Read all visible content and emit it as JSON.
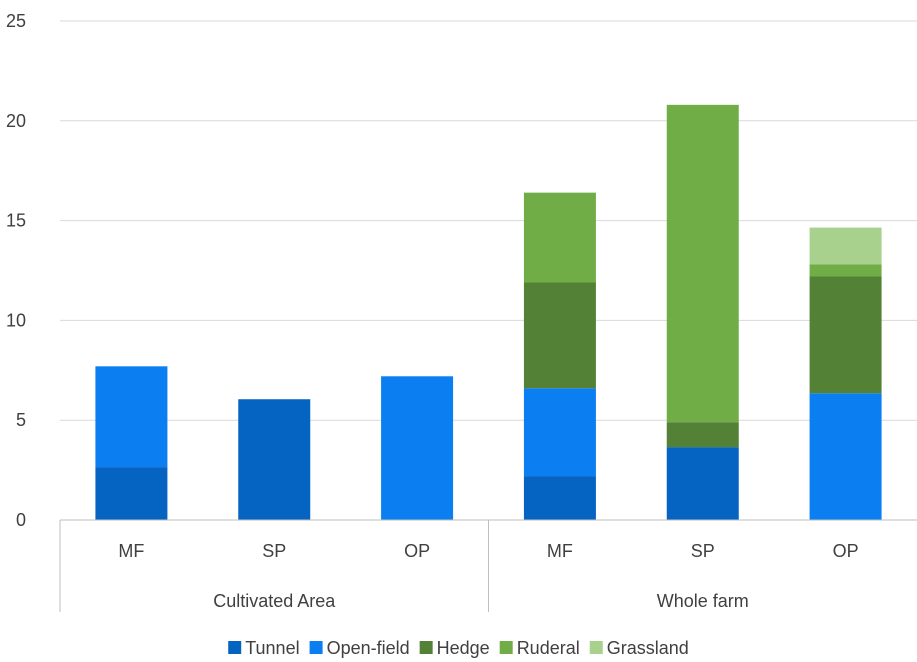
{
  "chart_data": {
    "type": "bar",
    "stacked": true,
    "groups": [
      {
        "name": "Cultivated Area",
        "categories": [
          "MF",
          "SP",
          "OP"
        ]
      },
      {
        "name": "Whole farm",
        "categories": [
          "MF",
          "SP",
          "OP"
        ]
      }
    ],
    "categories": [
      "MF",
      "SP",
      "OP",
      "MF",
      "SP",
      "OP"
    ],
    "series": [
      {
        "name": "Tunnel",
        "color": "#0563c1",
        "values": [
          2.65,
          6.05,
          0,
          2.2,
          3.65,
          0
        ]
      },
      {
        "name": "Open-field",
        "color": "#0b7ef2",
        "values": [
          5.05,
          0,
          7.2,
          4.4,
          0,
          6.35
        ]
      },
      {
        "name": "Hedge",
        "color": "#538135",
        "values": [
          0,
          0,
          0,
          5.3,
          1.25,
          5.85
        ]
      },
      {
        "name": "Ruderal",
        "color": "#70ad47",
        "values": [
          0,
          0,
          0,
          4.5,
          15.9,
          0.6
        ]
      },
      {
        "name": "Grassland",
        "color": "#a9d18e",
        "values": [
          0,
          0,
          0,
          0,
          0,
          1.85
        ]
      }
    ],
    "yticks": [
      "0",
      "5",
      "10",
      "15",
      "20",
      "25"
    ],
    "ylim": [
      0,
      25
    ],
    "grid": true,
    "legend_position": "bottom"
  }
}
